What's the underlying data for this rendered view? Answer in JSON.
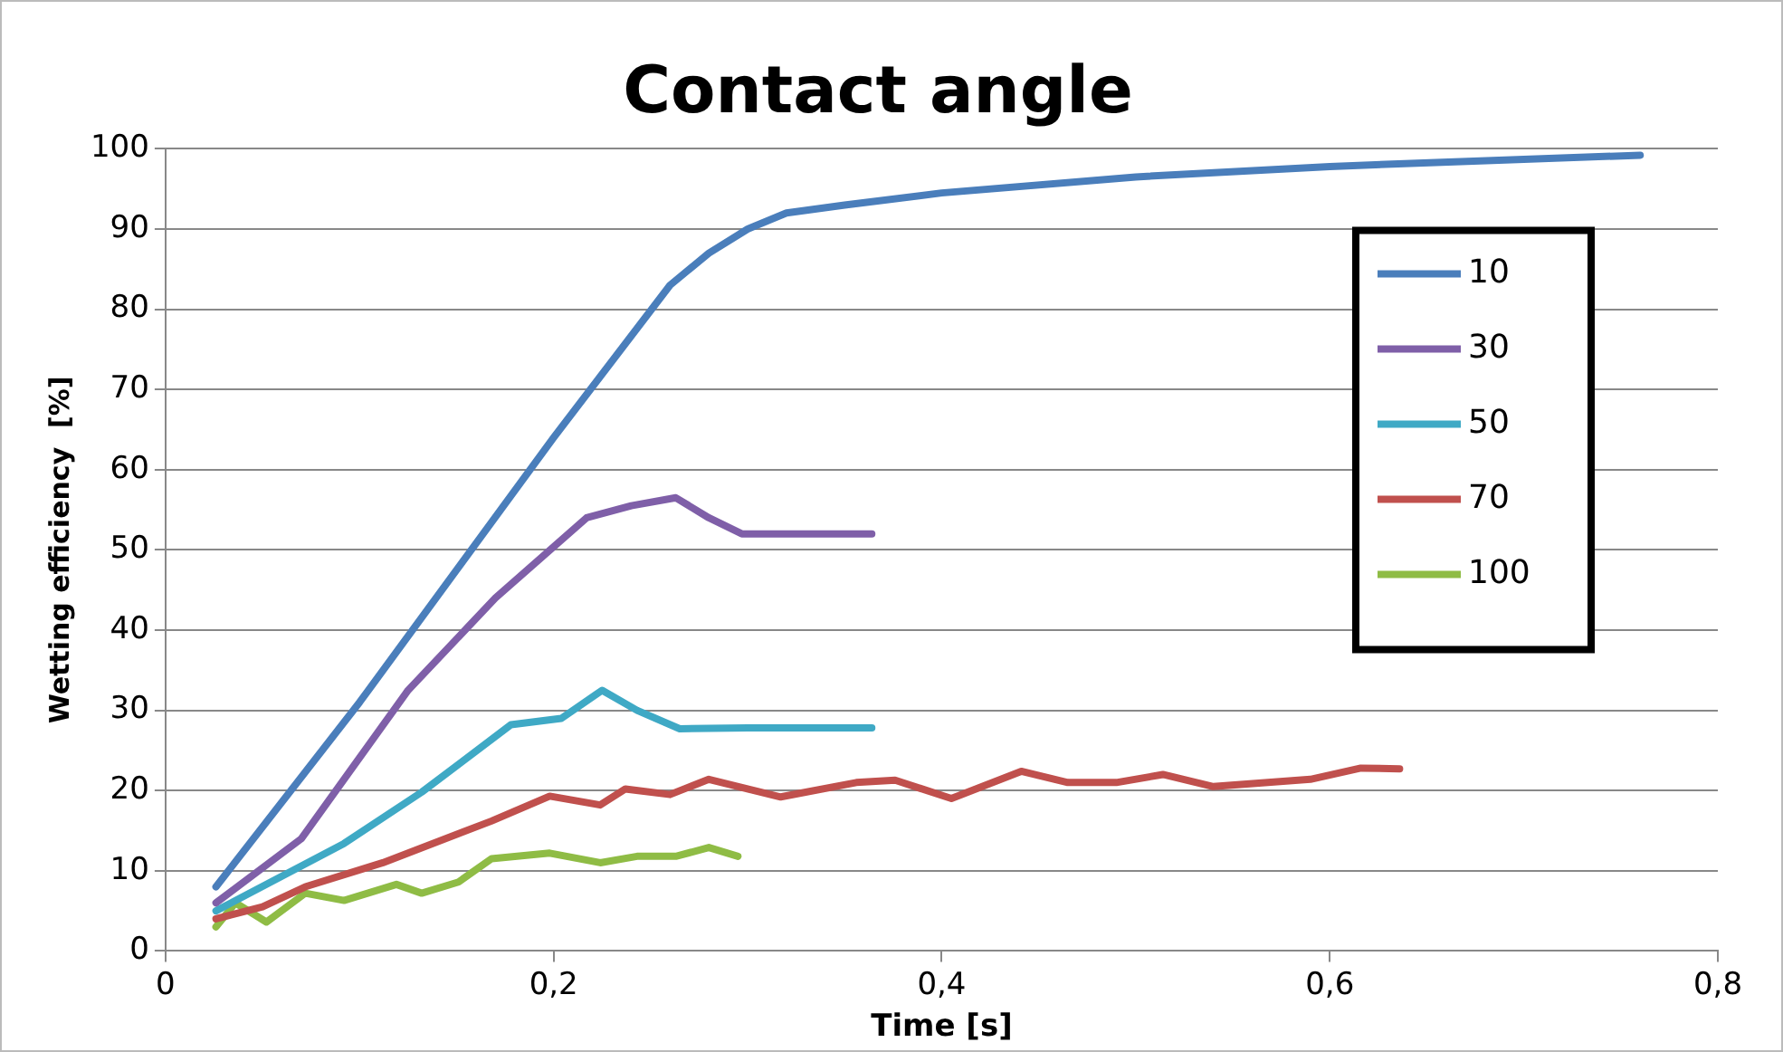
{
  "chart_data": {
    "type": "line",
    "title": "Contact angle",
    "xlabel": "Time [s]",
    "ylabel": "Wetting efficiency  [%]",
    "xlim": [
      0,
      0.8
    ],
    "xticks": [
      0,
      {
        "value": 0.2,
        "label": "0,2"
      },
      {
        "value": 0.4,
        "label": "0,4"
      },
      {
        "value": 0.6,
        "label": "0,6"
      },
      {
        "value": 0.8,
        "label": "0,8"
      }
    ],
    "ylim": [
      0,
      100
    ],
    "yticks": [
      0,
      10,
      20,
      30,
      40,
      50,
      60,
      70,
      80,
      90,
      100
    ],
    "grid": "y",
    "legend": "right",
    "marker": "none",
    "line_style": "solid",
    "series": [
      {
        "name": "10",
        "color": "#4a7ebb",
        "x": [
          0.026,
          0.1,
          0.2,
          0.26,
          0.28,
          0.3,
          0.32,
          0.35,
          0.4,
          0.5,
          0.6,
          0.7,
          0.76
        ],
        "values": [
          8,
          31,
          64,
          83,
          87,
          90,
          92,
          93,
          94.5,
          96.5,
          97.8,
          98.7,
          99.2
        ]
      },
      {
        "name": "30",
        "color": "#7f5fa8",
        "x": [
          0.026,
          0.07,
          0.125,
          0.17,
          0.217,
          0.24,
          0.263,
          0.28,
          0.297,
          0.364
        ],
        "values": [
          6,
          14,
          32.5,
          44,
          54,
          55.5,
          56.5,
          54,
          52,
          52
        ]
      },
      {
        "name": "50",
        "color": "#3fa9c5",
        "x": [
          0.026,
          0.092,
          0.132,
          0.178,
          0.204,
          0.225,
          0.243,
          0.265,
          0.3,
          0.364
        ],
        "values": [
          5,
          13.4,
          19.8,
          28.2,
          29,
          32.5,
          30,
          27.7,
          27.8,
          27.8
        ]
      },
      {
        "name": "70",
        "color": "#c0504d",
        "x": [
          0.026,
          0.05,
          0.072,
          0.112,
          0.168,
          0.198,
          0.224,
          0.237,
          0.26,
          0.28,
          0.317,
          0.356,
          0.376,
          0.405,
          0.441,
          0.465,
          0.49,
          0.514,
          0.54,
          0.59,
          0.616,
          0.636
        ],
        "values": [
          4,
          5.5,
          8,
          11,
          16.2,
          19.3,
          18.2,
          20.2,
          19.5,
          21.4,
          19.2,
          21,
          21.3,
          19,
          22.4,
          21,
          21,
          22,
          20.5,
          21.4,
          22.8,
          22.7
        ]
      },
      {
        "name": "100",
        "color": "#8fbc45",
        "x": [
          0.026,
          0.036,
          0.052,
          0.072,
          0.092,
          0.119,
          0.132,
          0.151,
          0.168,
          0.198,
          0.224,
          0.243,
          0.263,
          0.28,
          0.295
        ],
        "values": [
          3,
          6,
          3.6,
          7.2,
          6.3,
          8.3,
          7.2,
          8.6,
          11.5,
          12.2,
          11,
          11.8,
          11.8,
          12.9,
          11.8
        ]
      }
    ]
  }
}
